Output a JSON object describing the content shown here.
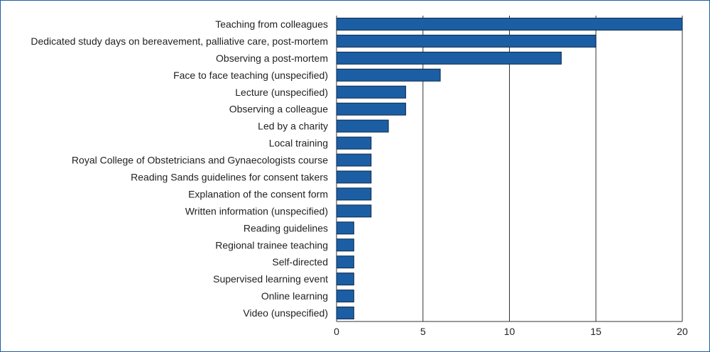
{
  "chart_data": {
    "type": "bar",
    "orientation": "horizontal",
    "categories": [
      "Teaching from colleagues",
      "Dedicated study days on bereavement, palliative care, post-mortem",
      "Observing a post-mortem",
      "Face to face teaching (unspecified)",
      "Lecture (unspecified)",
      "Observing a colleague",
      "Led by a charity",
      "Local training",
      "Royal College of Obstetricians and Gynaecologists course",
      "Reading Sands guidelines for consent takers",
      "Explanation of the consent form",
      "Written information (unspecified)",
      "Reading guidelines",
      "Regional trainee teaching",
      "Self-directed",
      "Supervised learning event",
      "Online learning",
      "Video (unspecified)"
    ],
    "values": [
      20,
      15,
      13,
      6,
      4,
      4,
      3,
      2,
      2,
      2,
      2,
      2,
      1,
      1,
      1,
      1,
      1,
      1
    ],
    "x_ticks": [
      "0",
      "5",
      "10",
      "15",
      "20"
    ],
    "xlim": [
      0,
      20
    ],
    "grid": "vertical",
    "bar_color": "#1c5ea3",
    "bar_edge_color": "#0d2a4d",
    "frame_color": "#1c5ea3"
  }
}
